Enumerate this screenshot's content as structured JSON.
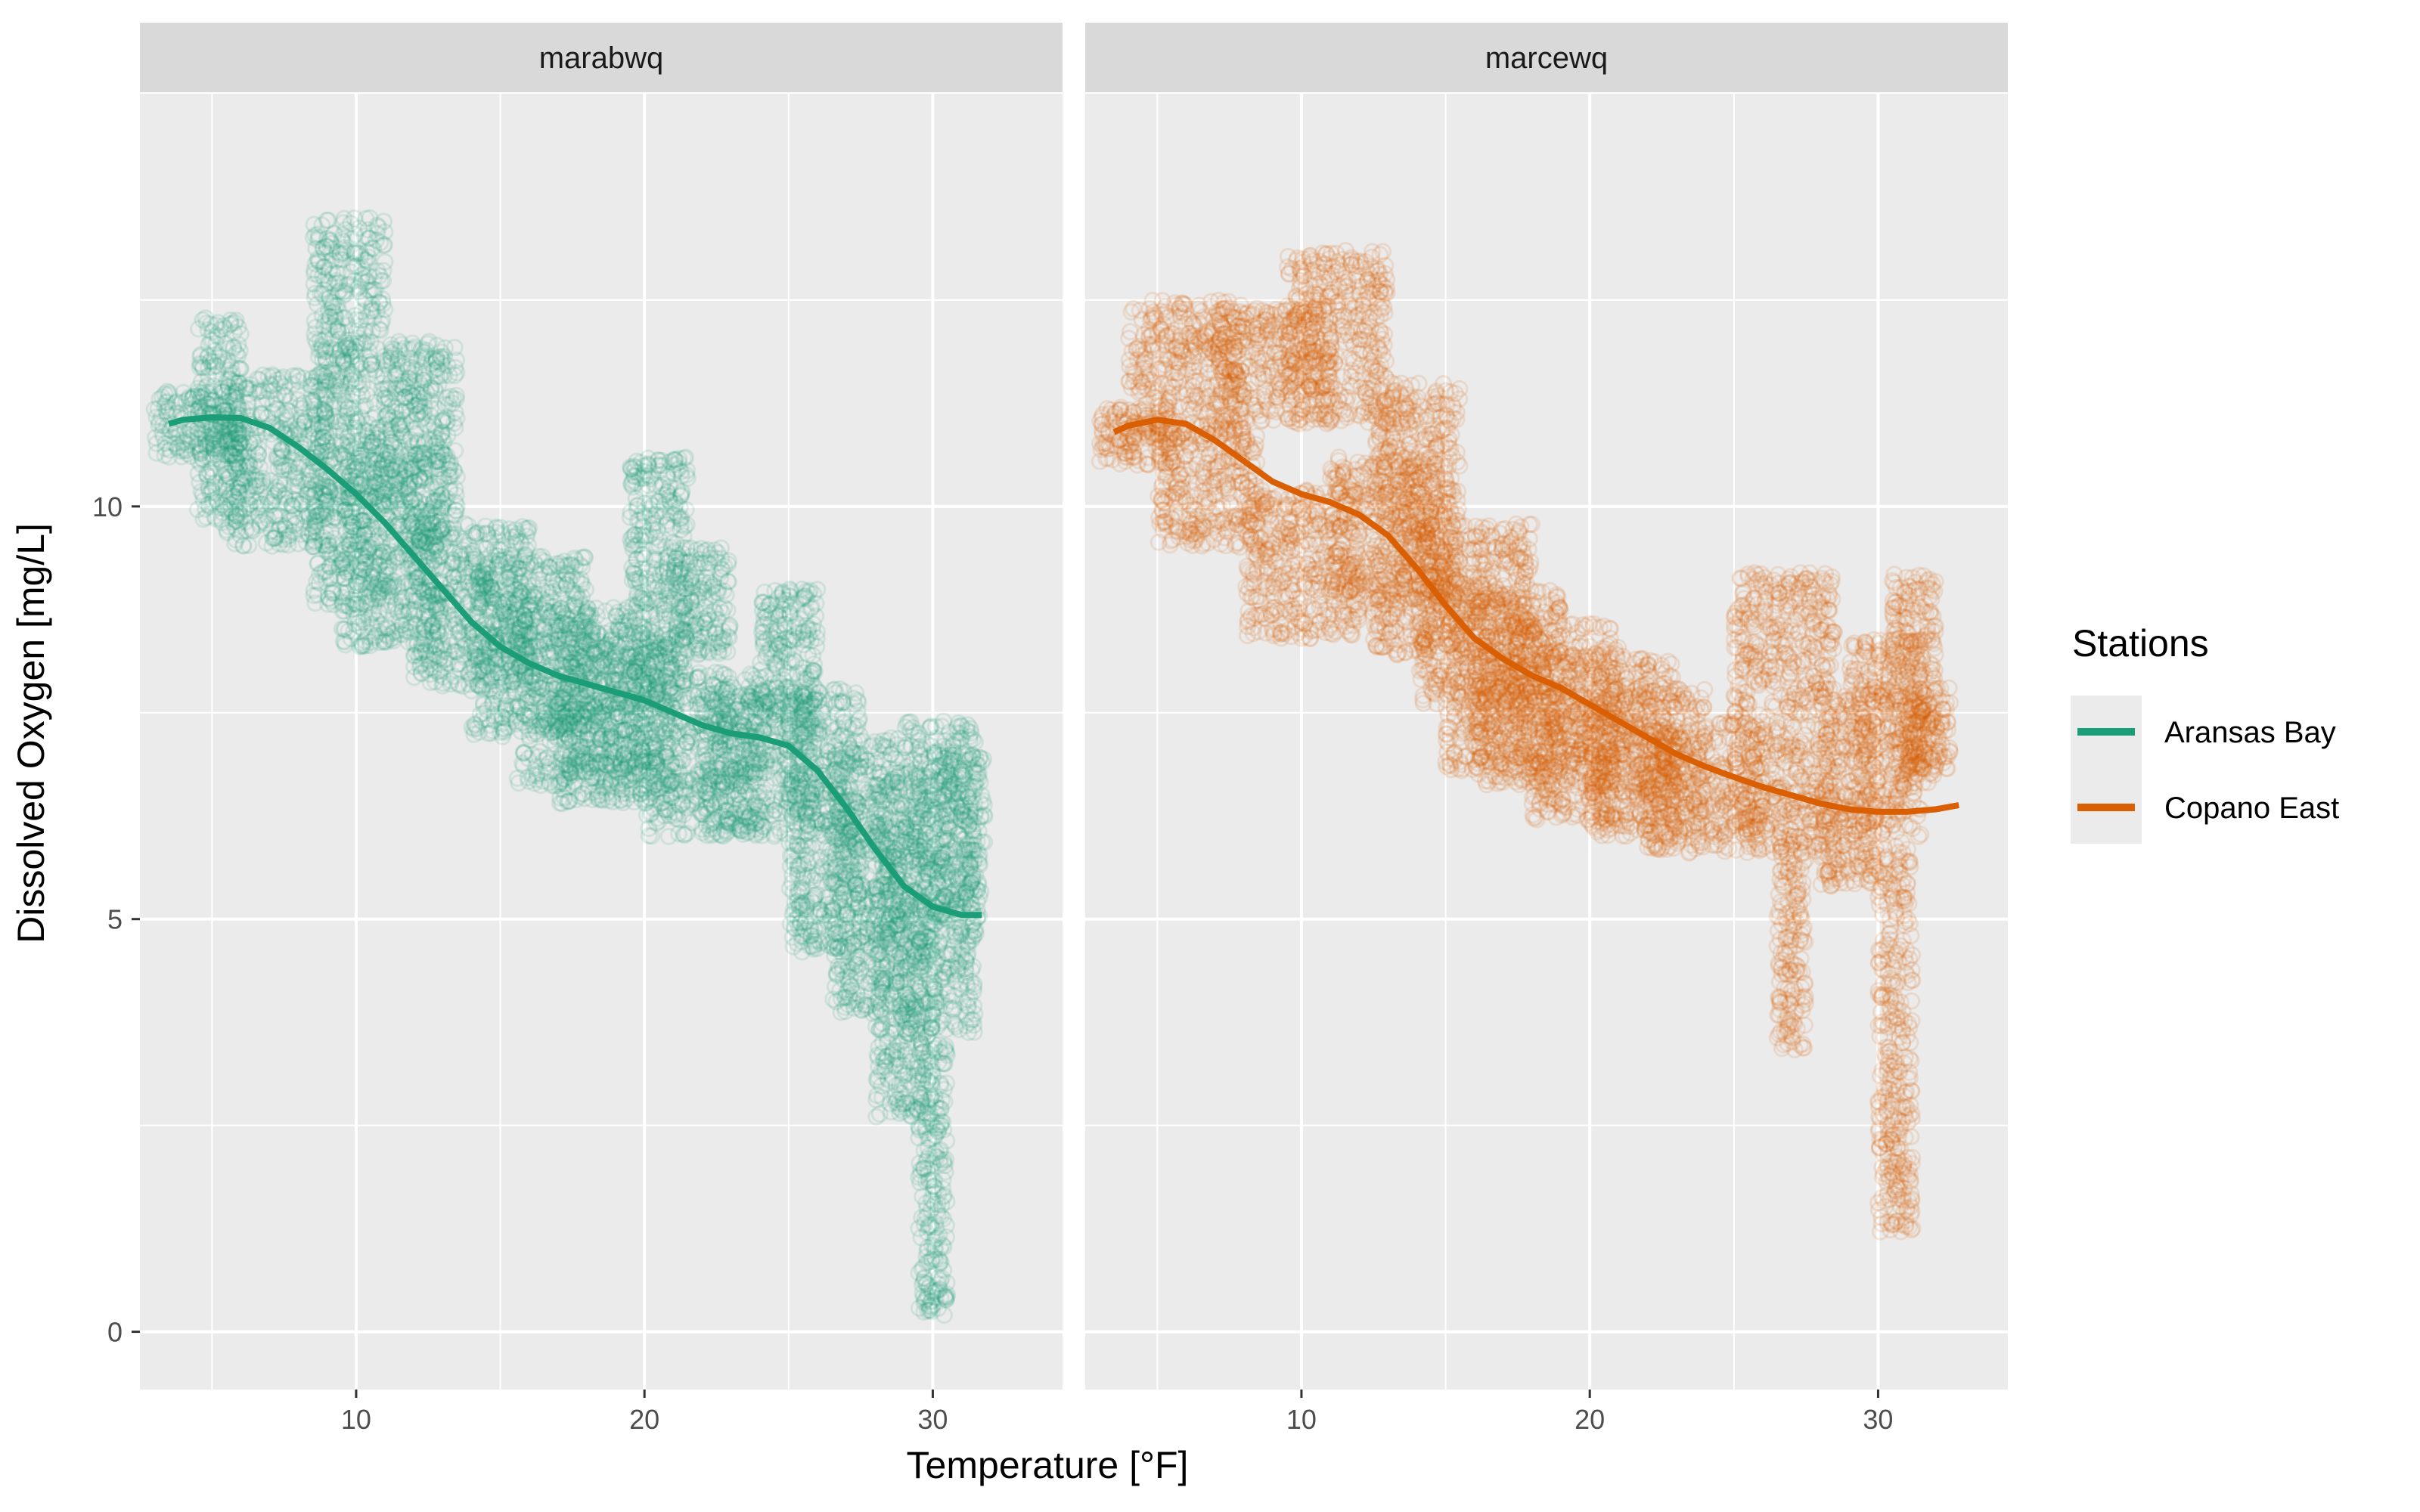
{
  "chart_data": {
    "type": "scatter",
    "facet_by": "station",
    "xlabel": "Temperature [°F]",
    "ylabel": "Dissolved Oxygen [mg/L]",
    "xlim": [
      2.5,
      34.5
    ],
    "ylim": [
      -0.7,
      15.0
    ],
    "x_ticks": [
      10,
      20,
      30
    ],
    "y_ticks": [
      0,
      5,
      10
    ],
    "grid": true,
    "legend": {
      "title": "Stations",
      "position": "right",
      "entries": [
        {
          "label": "Aransas Bay",
          "color": "#1b9e77"
        },
        {
          "label": "Copano East",
          "color": "#d95f02"
        }
      ]
    },
    "panels": [
      {
        "strip": "marabwq",
        "color": "#1b9e77",
        "smooth": {
          "x": [
            3.5,
            4,
            5,
            6,
            7,
            8,
            9,
            10,
            11,
            12,
            13,
            14,
            15,
            16,
            17,
            18,
            19,
            20,
            21,
            22,
            23,
            24,
            25,
            26,
            27,
            28,
            29,
            30,
            31,
            31.7
          ],
          "y": [
            11.0,
            11.05,
            11.08,
            11.07,
            10.95,
            10.72,
            10.45,
            10.15,
            9.8,
            9.4,
            9.0,
            8.6,
            8.3,
            8.1,
            7.95,
            7.85,
            7.75,
            7.65,
            7.5,
            7.35,
            7.25,
            7.2,
            7.1,
            6.8,
            6.35,
            5.85,
            5.4,
            5.15,
            5.05,
            5.05
          ]
        },
        "point_clouds": [
          {
            "x": [
              3,
              6
            ],
            "y": [
              10.6,
              11.4
            ]
          },
          {
            "x": [
              4.5,
              6
            ],
            "y": [
              9.8,
              12.3
            ]
          },
          {
            "x": [
              5.5,
              9
            ],
            "y": [
              9.5,
              11.6
            ]
          },
          {
            "x": [
              8.5,
              11
            ],
            "y": [
              8.8,
              13.5
            ]
          },
          {
            "x": [
              9.5,
              13
            ],
            "y": [
              8.3,
              10.8
            ]
          },
          {
            "x": [
              11,
              13.5
            ],
            "y": [
              9.5,
              12.0
            ]
          },
          {
            "x": [
              12,
              16
            ],
            "y": [
              7.8,
              9.8
            ]
          },
          {
            "x": [
              14,
              18
            ],
            "y": [
              7.2,
              9.4
            ]
          },
          {
            "x": [
              15.5,
              20
            ],
            "y": [
              6.6,
              8.8
            ]
          },
          {
            "x": [
              17,
              21
            ],
            "y": [
              6.4,
              8.4
            ]
          },
          {
            "x": [
              19.5,
              21.5
            ],
            "y": [
              7.6,
              10.6
            ]
          },
          {
            "x": [
              20,
              24
            ],
            "y": [
              6.0,
              8.0
            ]
          },
          {
            "x": [
              21,
              23
            ],
            "y": [
              8.2,
              9.5
            ]
          },
          {
            "x": [
              22,
              26
            ],
            "y": [
              6.0,
              7.8
            ]
          },
          {
            "x": [
              24,
              26
            ],
            "y": [
              7.4,
              9.0
            ]
          },
          {
            "x": [
              25,
              27.5
            ],
            "y": [
              4.6,
              7.8
            ]
          },
          {
            "x": [
              26.5,
              29
            ],
            "y": [
              3.8,
              7.2
            ]
          },
          {
            "x": [
              28,
              30
            ],
            "y": [
              2.6,
              6.8
            ]
          },
          {
            "x": [
              29,
              31.5
            ],
            "y": [
              3.6,
              7.4
            ]
          },
          {
            "x": [
              29.5,
              30.5
            ],
            "y": [
              0.2,
              3.5
            ]
          },
          {
            "x": [
              30,
              31.8
            ],
            "y": [
              5.0,
              7.0
            ]
          }
        ]
      },
      {
        "strip": "marcewq",
        "color": "#d95f02",
        "smooth": {
          "x": [
            3.5,
            4,
            5,
            6,
            7,
            8,
            9,
            10,
            11,
            12,
            13,
            14,
            15,
            16,
            17,
            18,
            19,
            20,
            21,
            22,
            23,
            24,
            25,
            26,
            27,
            28,
            29,
            30,
            31,
            32,
            32.8
          ],
          "y": [
            10.9,
            10.98,
            11.05,
            11.0,
            10.8,
            10.55,
            10.3,
            10.15,
            10.05,
            9.9,
            9.65,
            9.25,
            8.8,
            8.4,
            8.15,
            7.95,
            7.8,
            7.6,
            7.4,
            7.2,
            7.0,
            6.85,
            6.72,
            6.6,
            6.5,
            6.4,
            6.33,
            6.3,
            6.3,
            6.33,
            6.38
          ]
        },
        "point_clouds": [
          {
            "x": [
              3,
              5.5
            ],
            "y": [
              10.5,
              11.2
            ]
          },
          {
            "x": [
              4,
              8
            ],
            "y": [
              10.8,
              12.5
            ]
          },
          {
            "x": [
              5,
              8.5
            ],
            "y": [
              9.5,
              11.0
            ]
          },
          {
            "x": [
              7,
              11
            ],
            "y": [
              11.0,
              12.4
            ]
          },
          {
            "x": [
              8,
              12
            ],
            "y": [
              8.4,
              10.2
            ]
          },
          {
            "x": [
              9.5,
              13
            ],
            "y": [
              11.0,
              13.1
            ]
          },
          {
            "x": [
              11,
              15
            ],
            "y": [
              8.8,
              10.6
            ]
          },
          {
            "x": [
              12.5,
              15.5
            ],
            "y": [
              8.2,
              11.5
            ]
          },
          {
            "x": [
              14,
              18
            ],
            "y": [
              7.6,
              9.8
            ]
          },
          {
            "x": [
              15,
              19
            ],
            "y": [
              6.8,
              9.0
            ]
          },
          {
            "x": [
              16,
              21
            ],
            "y": [
              6.6,
              8.6
            ]
          },
          {
            "x": [
              18,
              23
            ],
            "y": [
              6.2,
              8.2
            ]
          },
          {
            "x": [
              20,
              24
            ],
            "y": [
              6.0,
              7.8
            ]
          },
          {
            "x": [
              22,
              26
            ],
            "y": [
              5.8,
              7.4
            ]
          },
          {
            "x": [
              25,
              28.5
            ],
            "y": [
              5.8,
              9.2
            ]
          },
          {
            "x": [
              26.5,
              27.5
            ],
            "y": [
              3.4,
              6.0
            ]
          },
          {
            "x": [
              28,
              30
            ],
            "y": [
              5.4,
              7.8
            ]
          },
          {
            "x": [
              29,
              31.5
            ],
            "y": [
              6.0,
              8.4
            ]
          },
          {
            "x": [
              30,
              31.2
            ],
            "y": [
              1.2,
              6.0
            ]
          },
          {
            "x": [
              30.5,
              32
            ],
            "y": [
              6.6,
              9.2
            ]
          },
          {
            "x": [
              31,
              32.5
            ],
            "y": [
              6.8,
              7.8
            ]
          }
        ]
      }
    ]
  }
}
